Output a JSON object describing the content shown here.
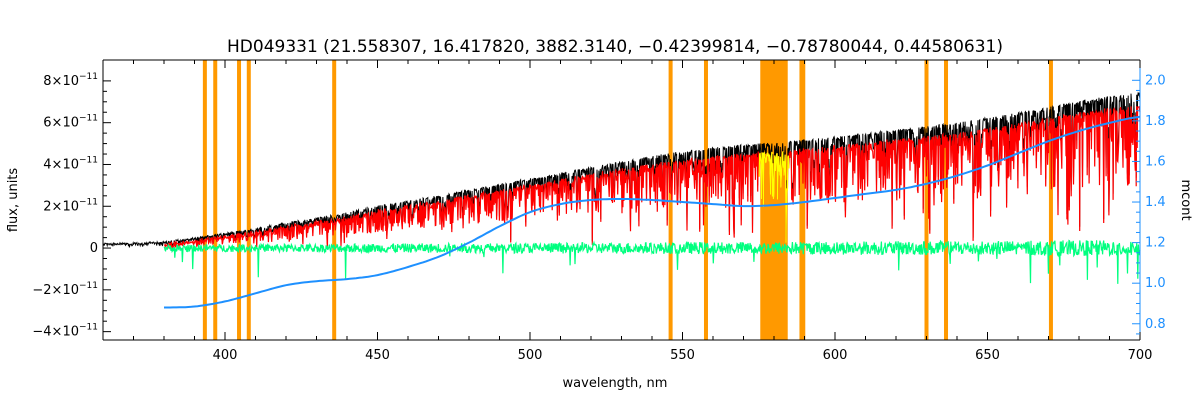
{
  "chart_data": {
    "type": "line",
    "title": "HD049331   (21.558307, 16.417820, 3882.3140, −0.42399814, −0.78780044, 0.44580631)",
    "xlabel": "wavelength, nm",
    "ylabel": "flux, units",
    "y2label": "mcont",
    "xlim": [
      360,
      700
    ],
    "ylim": [
      -4.4e-11,
      9e-11
    ],
    "y2lim": [
      0.72,
      2.1
    ],
    "x_ticks": [
      {
        "value": 400,
        "label": "400"
      },
      {
        "value": 450,
        "label": "450"
      },
      {
        "value": 500,
        "label": "500"
      },
      {
        "value": 550,
        "label": "550"
      },
      {
        "value": 600,
        "label": "600"
      },
      {
        "value": 650,
        "label": "650"
      },
      {
        "value": 700,
        "label": "700"
      }
    ],
    "y_ticks": [
      {
        "value": 8e-11,
        "mant": "8×10",
        "exp": "−11"
      },
      {
        "value": 6e-11,
        "mant": "6×10",
        "exp": "−11"
      },
      {
        "value": 4e-11,
        "mant": "4×10",
        "exp": "−11"
      },
      {
        "value": 2e-11,
        "mant": "2×10",
        "exp": "−11"
      },
      {
        "value": 0,
        "mant": "0",
        "exp": ""
      },
      {
        "value": -2e-11,
        "mant": "−2×10",
        "exp": "−11"
      },
      {
        "value": -4e-11,
        "mant": "−4×10",
        "exp": "−11"
      }
    ],
    "y2_ticks": [
      {
        "value": 0.8,
        "label": "0.8"
      },
      {
        "value": 1.0,
        "label": "1.0"
      },
      {
        "value": 1.2,
        "label": "1.2"
      },
      {
        "value": 1.4,
        "label": "1.4"
      },
      {
        "value": 1.6,
        "label": "1.6"
      },
      {
        "value": 1.8,
        "label": "1.8"
      },
      {
        "value": 2.0,
        "label": "2.0"
      }
    ],
    "masked_lines_nm": [
      393.4,
      396.8,
      404.6,
      407.8,
      435.8,
      546.1,
      557.7,
      589.0,
      589.6,
      630.0,
      636.4,
      670.8
    ],
    "masked_band_nm": [
      575.5,
      584.5
    ],
    "continuum_knots": {
      "x": [
        380,
        390,
        400,
        410,
        420,
        430,
        440,
        450,
        460,
        470,
        480,
        490,
        500,
        510,
        520,
        530,
        540,
        550,
        560,
        570,
        580,
        590,
        600,
        610,
        620,
        630,
        640,
        650,
        660,
        670,
        680,
        690,
        700
      ],
      "y": [
        0.88,
        0.885,
        0.91,
        0.95,
        0.99,
        1.01,
        1.02,
        1.04,
        1.08,
        1.13,
        1.2,
        1.28,
        1.35,
        1.39,
        1.41,
        1.415,
        1.41,
        1.4,
        1.39,
        1.38,
        1.385,
        1.4,
        1.42,
        1.44,
        1.46,
        1.49,
        1.53,
        1.58,
        1.64,
        1.7,
        1.75,
        1.79,
        1.82
      ]
    },
    "observed_envelope_knots": {
      "x": [
        360,
        380,
        400,
        420,
        450,
        500,
        550,
        600,
        650,
        700
      ],
      "y": [
        2e-12,
        3e-12,
        7e-12,
        1.2e-11,
        2e-11,
        3.3e-11,
        4.6e-11,
        5.3e-11,
        6.2e-11,
        7.4e-11
      ]
    },
    "series": [
      {
        "color": "#000000",
        "role": "observed",
        "x_range": [
          360,
          700
        ]
      },
      {
        "color": "#ff0000",
        "role": "model",
        "x_range": [
          380,
          700
        ]
      },
      {
        "color": "#ffff00",
        "role": "model in masked region",
        "x_range": [
          575,
          585
        ]
      },
      {
        "color": "#00ff7f",
        "role": "residual",
        "x_range": [
          380,
          700
        ]
      },
      {
        "color": "#1e90ff",
        "role": "continuum",
        "axis": "right",
        "x_range": [
          380,
          700
        ]
      }
    ],
    "mask_color": "#ff9900",
    "right_axis_color": "#1e90ff",
    "grid": false,
    "legend": "none"
  }
}
